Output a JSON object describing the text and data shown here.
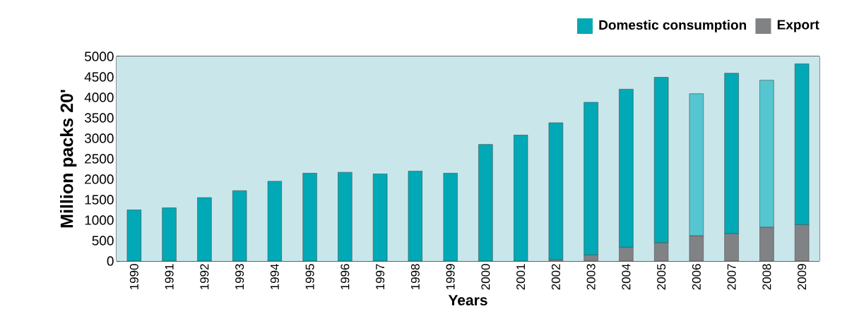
{
  "chart_data": {
    "type": "bar",
    "stacked": true,
    "xlabel": "Years",
    "ylabel": "Million packs 20'",
    "categories": [
      "1990",
      "1991",
      "1992",
      "1993",
      "1994",
      "1995",
      "1996",
      "1997",
      "1998",
      "1999",
      "2000",
      "2001",
      "2002",
      "2003",
      "2004",
      "2005",
      "2006",
      "2007",
      "2008",
      "2009"
    ],
    "series": [
      {
        "name": "Export",
        "color": "#808285",
        "values": [
          0,
          0,
          0,
          0,
          0,
          0,
          0,
          0,
          0,
          0,
          0,
          0,
          40,
          150,
          340,
          450,
          620,
          670,
          830,
          890
        ]
      },
      {
        "name": "Domestic consumption",
        "color": "#00a9b5",
        "colors": [
          "#00a9b5",
          "#00a9b5",
          "#00a9b5",
          "#00a9b5",
          "#00a9b5",
          "#00a9b5",
          "#00a9b5",
          "#00a9b5",
          "#00a9b5",
          "#00a9b5",
          "#00a9b5",
          "#00a9b5",
          "#00a9b5",
          "#00a9b5",
          "#00a9b5",
          "#00a9b5",
          "#55c6cf",
          "#00a9b5",
          "#55c6cf",
          "#00a9b5"
        ],
        "values": [
          1250,
          1300,
          1550,
          1720,
          1950,
          2150,
          2170,
          2130,
          2200,
          2150,
          2850,
          3080,
          3340,
          3730,
          3860,
          4040,
          3470,
          3920,
          3590,
          3930
        ]
      }
    ],
    "ylim": [
      0,
      5000
    ],
    "yticks": [
      0,
      500,
      1000,
      1500,
      2000,
      2500,
      3000,
      3500,
      4000,
      4500,
      5000
    ],
    "grid": "y",
    "legend": "top right"
  }
}
